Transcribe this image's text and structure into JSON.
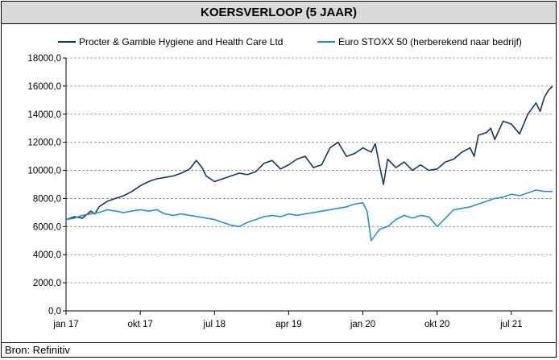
{
  "header": {
    "title": "KOERSVERLOOP (5 JAAR)"
  },
  "footer": {
    "source": "Bron: Refinitiv"
  },
  "colors": {
    "series1": "#17375e",
    "series2": "#2a8fc9",
    "grid": "#8c8c8c",
    "axis": "#000000"
  },
  "chart_data": {
    "type": "line",
    "title": "KOERSVERLOOP (5 JAAR)",
    "xlabel": "",
    "ylabel": "",
    "ylim": [
      0,
      18000
    ],
    "y_ticks": [
      0,
      2000,
      4000,
      6000,
      8000,
      10000,
      12000,
      14000,
      16000,
      18000
    ],
    "y_tick_labels": [
      "0,0",
      "2000,0",
      "4000,0",
      "6000,0",
      "8000,0",
      "10000,0",
      "12000,0",
      "14000,0",
      "16000,0",
      "18000,0"
    ],
    "x_tick_labels": [
      "jan 17",
      "okt 17",
      "jul 18",
      "apr 19",
      "jan 20",
      "okt 20",
      "jul 21"
    ],
    "x_range_months": [
      0,
      59
    ],
    "grid": "horizontal dashed",
    "legend_position": "top",
    "series": [
      {
        "name": "Procter & Gamble Hygiene and Health Care Ltd",
        "points": [
          [
            0,
            6500
          ],
          [
            1,
            6700
          ],
          [
            2,
            6600
          ],
          [
            3,
            7100
          ],
          [
            3.5,
            6900
          ],
          [
            4,
            7400
          ],
          [
            5,
            7800
          ],
          [
            6,
            8000
          ],
          [
            7,
            8200
          ],
          [
            8,
            8500
          ],
          [
            9,
            8900
          ],
          [
            10,
            9200
          ],
          [
            11,
            9400
          ],
          [
            12,
            9500
          ],
          [
            13,
            9600
          ],
          [
            14,
            9800
          ],
          [
            15,
            10100
          ],
          [
            15.8,
            10700
          ],
          [
            16.5,
            10200
          ],
          [
            17,
            9600
          ],
          [
            18,
            9200
          ],
          [
            19,
            9400
          ],
          [
            20,
            9600
          ],
          [
            21,
            9800
          ],
          [
            22,
            9700
          ],
          [
            23,
            9900
          ],
          [
            24,
            10500
          ],
          [
            25,
            10700
          ],
          [
            26,
            10100
          ],
          [
            27,
            10400
          ],
          [
            28,
            10800
          ],
          [
            29,
            11000
          ],
          [
            30,
            10200
          ],
          [
            31,
            10400
          ],
          [
            32,
            11600
          ],
          [
            33,
            12000
          ],
          [
            34,
            11000
          ],
          [
            35,
            11200
          ],
          [
            36,
            11600
          ],
          [
            37,
            11300
          ],
          [
            37.5,
            11900
          ],
          [
            38,
            10400
          ],
          [
            38.5,
            9000
          ],
          [
            39,
            10800
          ],
          [
            40,
            10200
          ],
          [
            41,
            10600
          ],
          [
            42,
            10000
          ],
          [
            43,
            10400
          ],
          [
            44,
            10000
          ],
          [
            45,
            10100
          ],
          [
            46,
            10600
          ],
          [
            47,
            10800
          ],
          [
            48,
            11300
          ],
          [
            49,
            11600
          ],
          [
            49.5,
            11000
          ],
          [
            50,
            12500
          ],
          [
            51,
            12700
          ],
          [
            51.5,
            13000
          ],
          [
            52,
            12200
          ],
          [
            53,
            13500
          ],
          [
            54,
            13300
          ],
          [
            55,
            12600
          ],
          [
            56,
            14000
          ],
          [
            57,
            14800
          ],
          [
            57.5,
            14200
          ],
          [
            58,
            15200
          ],
          [
            58.5,
            15700
          ],
          [
            59,
            16000
          ]
        ]
      },
      {
        "name": "Euro STOXX 50 (herberekend naar bedrijf)",
        "points": [
          [
            0,
            6500
          ],
          [
            1,
            6600
          ],
          [
            2,
            6800
          ],
          [
            3,
            6900
          ],
          [
            4,
            7000
          ],
          [
            5,
            7200
          ],
          [
            6,
            7100
          ],
          [
            7,
            7000
          ],
          [
            8,
            7100
          ],
          [
            9,
            7200
          ],
          [
            10,
            7100
          ],
          [
            11,
            7200
          ],
          [
            12,
            6900
          ],
          [
            13,
            6800
          ],
          [
            14,
            6900
          ],
          [
            15,
            6800
          ],
          [
            16,
            6700
          ],
          [
            17,
            6600
          ],
          [
            18,
            6500
          ],
          [
            19,
            6300
          ],
          [
            20,
            6100
          ],
          [
            21,
            6000
          ],
          [
            22,
            6300
          ],
          [
            23,
            6500
          ],
          [
            24,
            6700
          ],
          [
            25,
            6800
          ],
          [
            26,
            6700
          ],
          [
            27,
            6900
          ],
          [
            28,
            6800
          ],
          [
            29,
            6900
          ],
          [
            30,
            7000
          ],
          [
            31,
            7100
          ],
          [
            32,
            7200
          ],
          [
            33,
            7300
          ],
          [
            34,
            7400
          ],
          [
            35,
            7600
          ],
          [
            36,
            7700
          ],
          [
            36.5,
            7100
          ],
          [
            37,
            5000
          ],
          [
            37.5,
            5400
          ],
          [
            38,
            5800
          ],
          [
            39,
            6000
          ],
          [
            40,
            6500
          ],
          [
            41,
            6800
          ],
          [
            42,
            6600
          ],
          [
            43,
            6800
          ],
          [
            44,
            6700
          ],
          [
            45,
            6000
          ],
          [
            46,
            6600
          ],
          [
            47,
            7200
          ],
          [
            48,
            7300
          ],
          [
            49,
            7400
          ],
          [
            50,
            7600
          ],
          [
            51,
            7800
          ],
          [
            52,
            8000
          ],
          [
            53,
            8100
          ],
          [
            54,
            8300
          ],
          [
            55,
            8200
          ],
          [
            56,
            8400
          ],
          [
            57,
            8600
          ],
          [
            58,
            8500
          ],
          [
            59,
            8500
          ]
        ]
      }
    ]
  }
}
